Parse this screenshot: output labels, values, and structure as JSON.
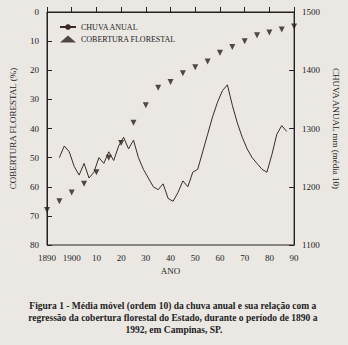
{
  "chart_data": {
    "type": "line",
    "title": "Figura 1 - Média móvel (ordem 10) da chuva anual e sua relação com a regressão da cobertura florestal do Estado, durante o período de 1890 a 1992, em Campinas, SP.",
    "x_label": "ANO",
    "y_label": "COBERTURA FLORESTAL (%)",
    "y2_label": "CHUVA ANUAL mm (média 10)",
    "xlim": [
      1890,
      1990
    ],
    "xticks": [
      1890,
      1900,
      {
        "value": 1910,
        "label": "10"
      },
      {
        "value": 1920,
        "label": "20"
      },
      {
        "value": 1930,
        "label": "30"
      },
      {
        "value": 1940,
        "label": "40"
      },
      {
        "value": 1950,
        "label": "50"
      },
      {
        "value": 1960,
        "label": "60"
      },
      {
        "value": 1970,
        "label": "70"
      },
      {
        "value": 1980,
        "label": "80"
      },
      {
        "value": 1990,
        "label": "90"
      }
    ],
    "ylim": [
      80,
      0
    ],
    "yticks": [
      0,
      10,
      20,
      30,
      40,
      50,
      60,
      70,
      80
    ],
    "y2lim": [
      1100,
      1500
    ],
    "y2ticks": [
      1100,
      1200,
      1300,
      1400,
      1500
    ],
    "grid": false,
    "legend": "upper left",
    "series": [
      {
        "name": "CHUVA ANUAL",
        "type": "line",
        "axis": "y2",
        "color": "#3a2b22",
        "line_style": "solid",
        "marker": "none",
        "x": [
          1895,
          1897,
          1899,
          1901,
          1903,
          1905,
          1907,
          1909,
          1911,
          1913,
          1915,
          1917,
          1919,
          1921,
          1923,
          1925,
          1927,
          1929,
          1931,
          1933,
          1935,
          1937,
          1939,
          1941,
          1943,
          1945,
          1947,
          1949,
          1951,
          1953,
          1955,
          1957,
          1959,
          1961,
          1963,
          1965,
          1967,
          1969,
          1971,
          1973,
          1975,
          1977,
          1979,
          1981,
          1983,
          1985,
          1987
        ],
        "values": [
          1250,
          1270,
          1260,
          1235,
          1220,
          1240,
          1215,
          1225,
          1250,
          1240,
          1260,
          1245,
          1270,
          1285,
          1265,
          1280,
          1250,
          1230,
          1215,
          1200,
          1195,
          1205,
          1180,
          1175,
          1190,
          1210,
          1200,
          1225,
          1230,
          1260,
          1290,
          1320,
          1345,
          1365,
          1375,
          1340,
          1310,
          1285,
          1265,
          1250,
          1240,
          1230,
          1225,
          1255,
          1290,
          1305,
          1295
        ]
      },
      {
        "name": "COBERTURA FLORESTAL",
        "type": "scatter",
        "axis": "y",
        "color": "#2a1e18",
        "marker": "triangle_down",
        "x": [
          1890,
          1895,
          1900,
          1905,
          1910,
          1915,
          1920,
          1925,
          1930,
          1935,
          1940,
          1945,
          1950,
          1955,
          1960,
          1965,
          1970,
          1975,
          1980,
          1985,
          1990
        ],
        "values": [
          68,
          65,
          62,
          59,
          55,
          50,
          45,
          38,
          32,
          26,
          24,
          21,
          19,
          17,
          14,
          12,
          10,
          8,
          7,
          6,
          5
        ]
      }
    ]
  }
}
